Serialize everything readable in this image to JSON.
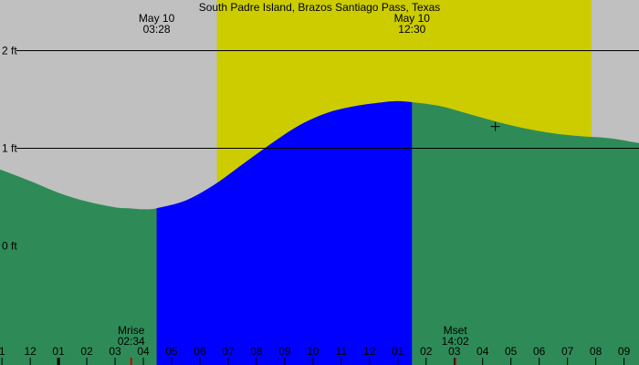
{
  "chart_data": {
    "type": "area",
    "title": "South Padre Island, Brazos Santiago Pass, Texas",
    "xlabel": "",
    "ylabel": "",
    "x_unit": "hours",
    "xlim": [
      -2.07,
      20.53
    ],
    "ylim": [
      -1.23,
      2.52
    ],
    "y_ticks": [
      {
        "value": 0,
        "label": "0 ft"
      },
      {
        "value": 1,
        "label": "1 ft"
      },
      {
        "value": 2,
        "label": "2 ft"
      }
    ],
    "hour_labels": [
      "1",
      "12",
      "01",
      "02",
      "03",
      "04",
      "05",
      "06",
      "07",
      "08",
      "09",
      "10",
      "11",
      "12",
      "01",
      "02",
      "03",
      "04",
      "05",
      "06",
      "07",
      "08",
      "09"
    ],
    "hour_label_start": -2,
    "daylight": {
      "start": 5.6,
      "end": 18.85
    },
    "tide_series": {
      "name": "",
      "x": [
        -2.07,
        -1,
        0,
        1,
        2,
        2.5,
        3.0,
        3.47,
        4.5,
        5.5,
        6.5,
        7.5,
        8.5,
        9.5,
        10.5,
        11.5,
        12.0,
        12.5,
        13.5,
        14.5,
        15.5,
        16.5,
        17.5,
        18.5,
        19.5,
        20.53
      ],
      "y": [
        0.78,
        0.66,
        0.54,
        0.45,
        0.39,
        0.38,
        0.37,
        0.38,
        0.46,
        0.62,
        0.83,
        1.04,
        1.23,
        1.36,
        1.43,
        1.47,
        1.48,
        1.47,
        1.43,
        1.35,
        1.27,
        1.2,
        1.15,
        1.12,
        1.1,
        1.05
      ]
    },
    "highlight_interval": {
      "start": 3.47,
      "end": 12.5,
      "color": "#0000ff"
    },
    "tide_events": [
      {
        "date": "May 10",
        "time": "03:28",
        "x": 3.47
      },
      {
        "date": "May 10",
        "time": "12:30",
        "x": 12.5
      }
    ],
    "moon_events": [
      {
        "label": "Mrise",
        "time": "02:34",
        "x": 2.57
      },
      {
        "label": "Mset",
        "time": "14:02",
        "x": 14.03
      }
    ],
    "marker": {
      "x": 15.45,
      "y": 1.22
    },
    "colors": {
      "night": "#c0c0c0",
      "day": "#cccc00",
      "tide": "#2e8b57",
      "highlight": "#0000ff",
      "moon_tick": "#cc0000"
    }
  }
}
